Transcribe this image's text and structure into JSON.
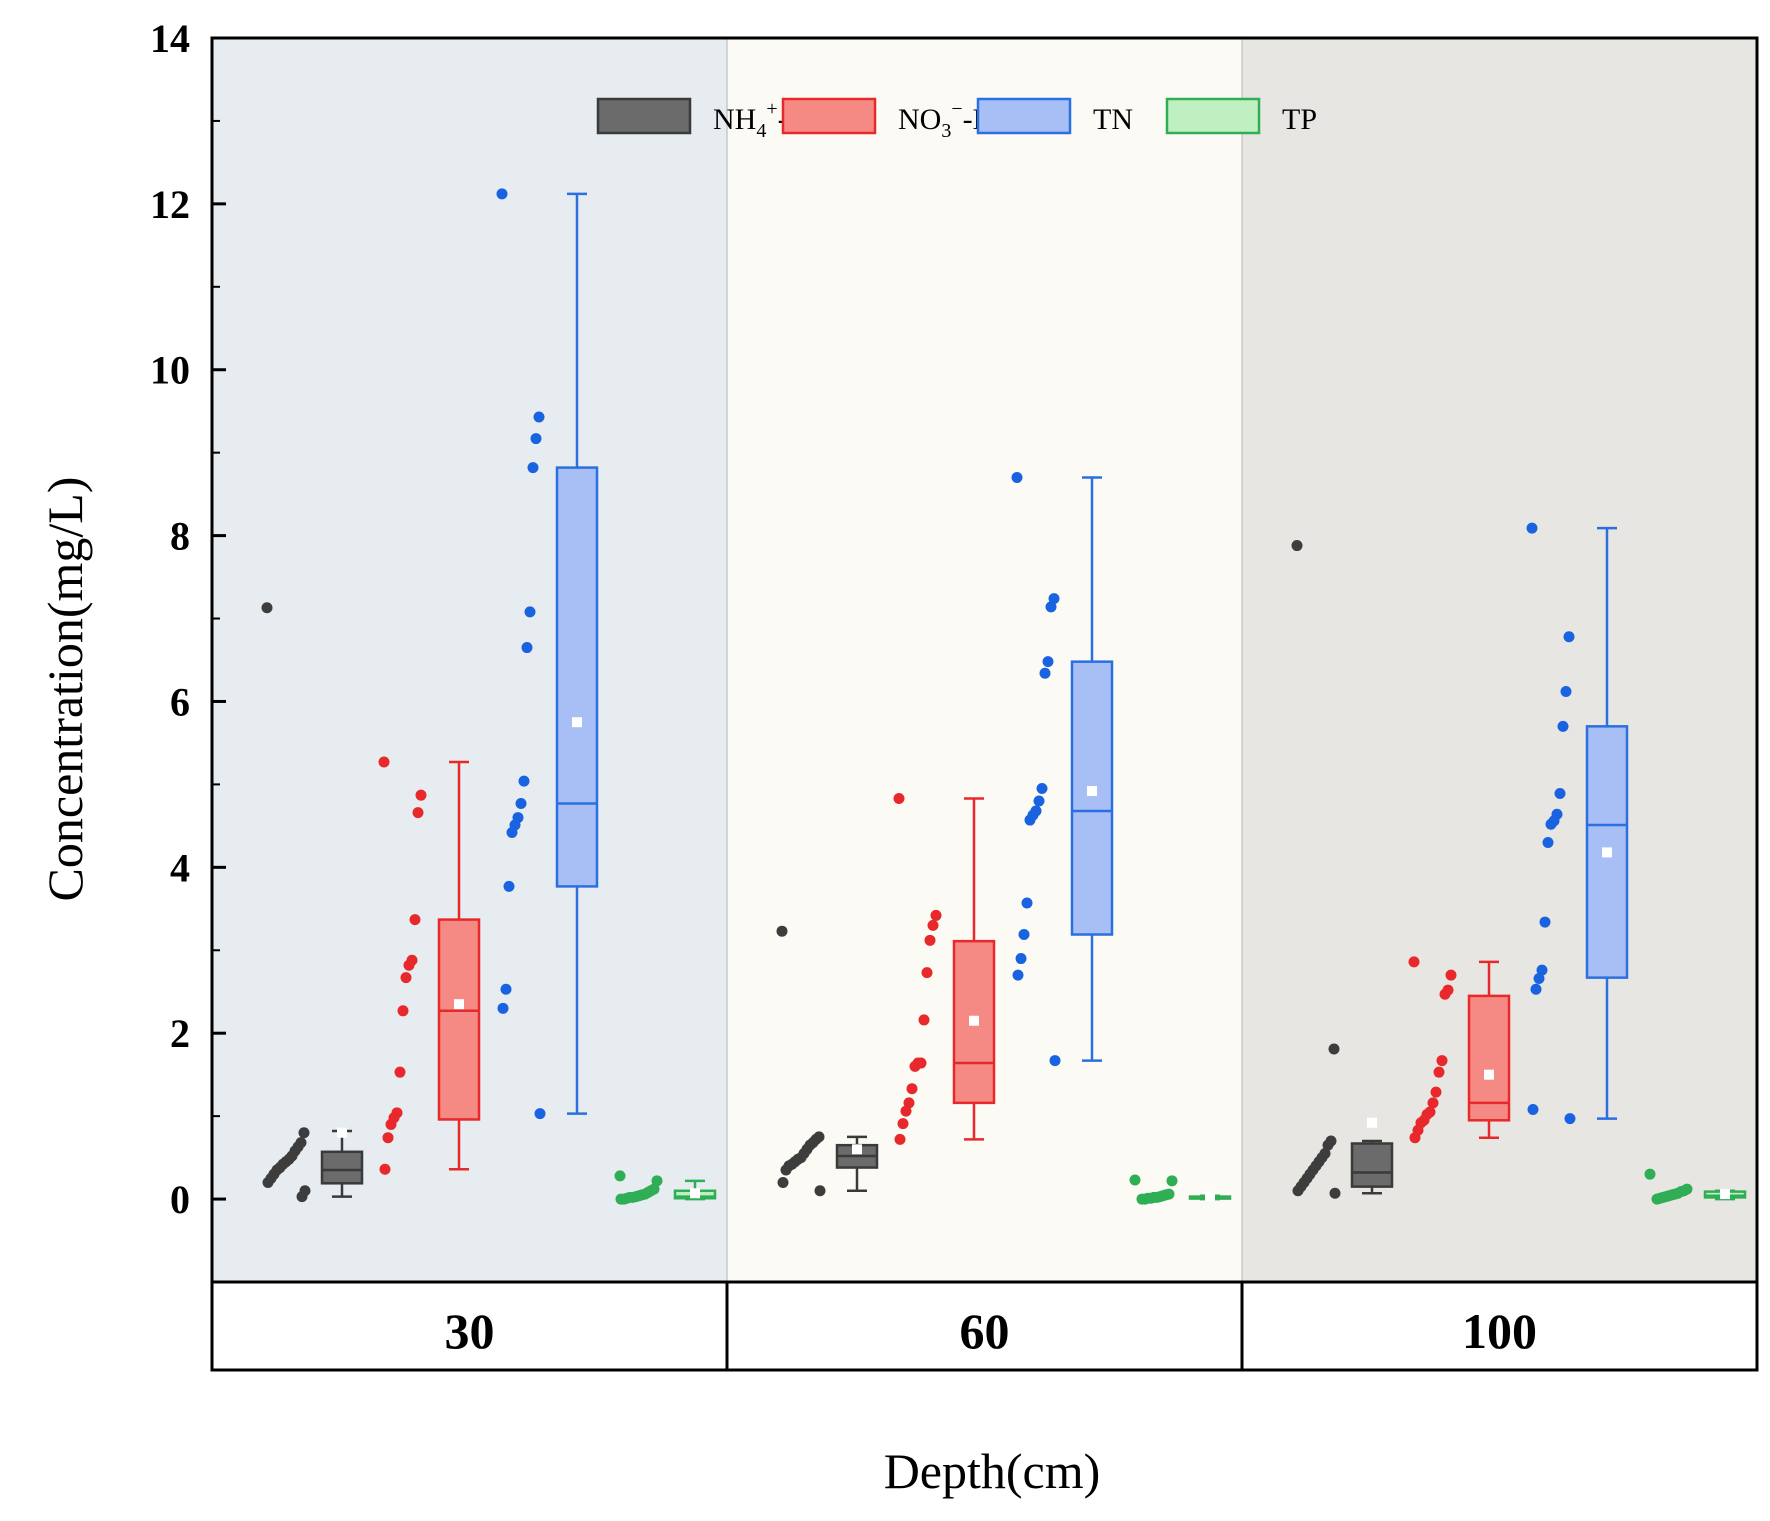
{
  "chart_data": {
    "type": "box",
    "title": "",
    "xlabel": "Depth(cm)",
    "ylabel": "Concentration(mg/L)",
    "ylim": [
      -1,
      14
    ],
    "yticks": [
      0,
      2,
      4,
      6,
      8,
      10,
      12,
      14
    ],
    "categories": [
      "30",
      "60",
      "100"
    ],
    "panel_colors": [
      "#e6ecef",
      "#fbfaf5",
      "#e8e6e3"
    ],
    "series": [
      {
        "name": "NH4+-N",
        "legend": {
          "base": "NH",
          "sub": "4",
          "sup": "+",
          "suffix": "-N"
        },
        "fill": "#6b6b6b",
        "stroke": "#3a3a3a",
        "point_color": "#3d3d3d",
        "boxes": [
          {
            "whisker_low": 0.03,
            "q1": 0.19,
            "median": 0.35,
            "q3": 0.57,
            "whisker_high": 0.82,
            "mean": 0.8,
            "points": [
              7.13,
              0.8,
              0.68,
              0.63,
              0.58,
              0.52,
              0.48,
              0.45,
              0.42,
              0.38,
              0.35,
              0.3,
              0.25,
              0.2,
              0.1,
              0.03
            ]
          },
          {
            "whisker_low": 0.1,
            "q1": 0.38,
            "median": 0.52,
            "q3": 0.65,
            "whisker_high": 0.75,
            "mean": 0.6,
            "points": [
              3.23,
              0.75,
              0.72,
              0.68,
              0.65,
              0.6,
              0.55,
              0.5,
              0.48,
              0.45,
              0.42,
              0.4,
              0.35,
              0.2,
              0.1
            ]
          },
          {
            "whisker_low": 0.07,
            "q1": 0.15,
            "median": 0.32,
            "q3": 0.67,
            "whisker_high": 0.7,
            "mean": 0.92,
            "points": [
              7.88,
              1.81,
              0.7,
              0.65,
              0.55,
              0.5,
              0.45,
              0.4,
              0.35,
              0.3,
              0.25,
              0.2,
              0.15,
              0.1,
              0.07
            ]
          }
        ]
      },
      {
        "name": "NO3--N",
        "legend": {
          "base": "NO",
          "sub": "3",
          "sup": "−",
          "suffix": "-N"
        },
        "fill": "#f58a84",
        "stroke": "#e8292b",
        "point_color": "#e8292b",
        "boxes": [
          {
            "whisker_low": 0.36,
            "q1": 0.96,
            "median": 2.27,
            "q3": 3.37,
            "whisker_high": 5.27,
            "mean": 2.35,
            "points": [
              5.27,
              4.87,
              4.66,
              3.37,
              2.88,
              2.82,
              2.67,
              2.27,
              1.53,
              1.04,
              0.98,
              0.9,
              0.74,
              0.36
            ]
          },
          {
            "whisker_low": 0.72,
            "q1": 1.16,
            "median": 1.64,
            "q3": 3.11,
            "whisker_high": 4.83,
            "mean": 2.15,
            "points": [
              4.83,
              3.42,
              3.3,
              3.12,
              2.73,
              2.16,
              1.64,
              1.64,
              1.6,
              1.33,
              1.16,
              1.06,
              0.91,
              0.72
            ]
          },
          {
            "whisker_low": 0.74,
            "q1": 0.95,
            "median": 1.16,
            "q3": 2.45,
            "whisker_high": 2.86,
            "mean": 1.5,
            "points": [
              2.86,
              2.7,
              2.52,
              2.47,
              1.67,
              1.53,
              1.29,
              1.16,
              1.05,
              1.02,
              0.95,
              0.92,
              0.83,
              0.74
            ]
          }
        ]
      },
      {
        "name": "TN",
        "legend": {
          "base": "TN",
          "sub": "",
          "sup": "",
          "suffix": ""
        },
        "fill": "#a7bff5",
        "stroke": "#2b6fe0",
        "point_color": "#1a63e0",
        "boxes": [
          {
            "whisker_low": 1.03,
            "q1": 3.77,
            "median": 4.77,
            "q3": 8.82,
            "whisker_high": 12.12,
            "mean": 5.75,
            "points": [
              12.12,
              9.43,
              9.17,
              8.82,
              7.08,
              6.65,
              5.04,
              4.77,
              4.6,
              4.51,
              4.42,
              3.77,
              2.53,
              2.3,
              1.03
            ]
          },
          {
            "whisker_low": 1.67,
            "q1": 3.19,
            "median": 4.68,
            "q3": 6.48,
            "whisker_high": 8.7,
            "mean": 4.92,
            "points": [
              8.7,
              7.24,
              7.14,
              6.48,
              6.34,
              4.95,
              4.8,
              4.68,
              4.63,
              4.57,
              3.57,
              3.19,
              2.9,
              2.7,
              1.67
            ]
          },
          {
            "whisker_low": 0.97,
            "q1": 2.67,
            "median": 4.51,
            "q3": 5.7,
            "whisker_high": 8.09,
            "mean": 4.18,
            "points": [
              8.09,
              6.78,
              6.12,
              5.7,
              4.89,
              4.64,
              4.56,
              4.52,
              4.3,
              3.34,
              2.76,
              2.66,
              2.53,
              1.08,
              0.97
            ]
          }
        ]
      },
      {
        "name": "TP",
        "legend": {
          "base": "TP",
          "sub": "",
          "sup": "",
          "suffix": ""
        },
        "fill": "#c0f0c2",
        "stroke": "#2fae55",
        "point_color": "#2fae55",
        "boxes": [
          {
            "whisker_low": 0.0,
            "q1": 0.01,
            "median": 0.03,
            "q3": 0.1,
            "whisker_high": 0.22,
            "mean": 0.07,
            "points": [
              0.28,
              0.22,
              0.12,
              0.1,
              0.08,
              0.06,
              0.05,
              0.04,
              0.03,
              0.02,
              0.02,
              0.01,
              0.0,
              0.0
            ]
          },
          {
            "whisker_low": 0.0,
            "q1": 0.01,
            "median": 0.02,
            "q3": 0.03,
            "whisker_high": 0.04,
            "mean": 0.03,
            "points": [
              0.23,
              0.22,
              0.06,
              0.05,
              0.04,
              0.03,
              0.02,
              0.02,
              0.01,
              0.01,
              0.0,
              0.0
            ]
          },
          {
            "whisker_low": 0.0,
            "q1": 0.02,
            "median": 0.04,
            "q3": 0.09,
            "whisker_high": 0.1,
            "mean": 0.06,
            "points": [
              0.3,
              0.12,
              0.1,
              0.09,
              0.07,
              0.06,
              0.05,
              0.04,
              0.03,
              0.02,
              0.01,
              0.0
            ]
          }
        ]
      }
    ]
  }
}
